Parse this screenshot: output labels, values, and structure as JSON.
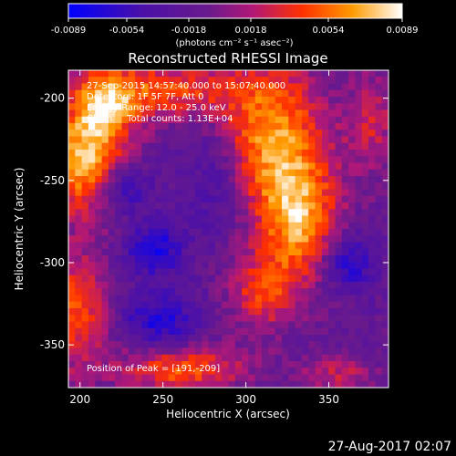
{
  "chart_data": {
    "type": "heatmap",
    "title": "Reconstructed RHESSI Image",
    "colorbar": {
      "ticks": [
        "-0.0089",
        "-0.0054",
        "-0.0018",
        "0.0018",
        "0.0054",
        "0.0089"
      ],
      "range": [
        -0.0089,
        0.0089
      ],
      "units": "(photons cm⁻² s⁻¹ asec⁻²)",
      "colors": [
        "#0000ff",
        "#4a10a8",
        "#6a1a8c",
        "#b01878",
        "#ff3000",
        "#ff9a00",
        "#ffffff"
      ]
    },
    "xlabel": "Heliocentric X (arcsec)",
    "ylabel": "Heliocentric Y (arcsec)",
    "xlim": [
      193,
      386
    ],
    "ylim": [
      -376,
      -183
    ],
    "xticks": [
      200,
      250,
      300,
      350
    ],
    "yticks": [
      -200,
      -250,
      -300,
      -350
    ],
    "grid": false,
    "annotations": [
      "27-Sep-2015 14:57:40.000 to 15:07:40.000",
      "Detectors: 1F 5F 7F, Att 0",
      "Energy Range: 12.0 - 25.0 keV",
      "Clean     Total counts: 1.13E+04"
    ],
    "peak_label": "Position of Peak = [191,-209]",
    "blobs": [
      {
        "x": 202,
        "y": -239,
        "amp": 0.0092,
        "sx": 16,
        "sy": 22
      },
      {
        "x": 215,
        "y": -205,
        "amp": 0.007,
        "sx": 14,
        "sy": 16
      },
      {
        "x": 198,
        "y": -330,
        "amp": 0.006,
        "sx": 14,
        "sy": 26
      },
      {
        "x": 250,
        "y": -195,
        "amp": 0.006,
        "sx": 30,
        "sy": 12
      },
      {
        "x": 315,
        "y": -225,
        "amp": 0.0085,
        "sx": 22,
        "sy": 34
      },
      {
        "x": 333,
        "y": -275,
        "amp": 0.0075,
        "sx": 16,
        "sy": 26
      },
      {
        "x": 310,
        "y": -318,
        "amp": 0.0055,
        "sx": 14,
        "sy": 16
      },
      {
        "x": 375,
        "y": -215,
        "amp": 0.004,
        "sx": 10,
        "sy": 22
      },
      {
        "x": 262,
        "y": -365,
        "amp": 0.0065,
        "sx": 26,
        "sy": 10
      },
      {
        "x": 355,
        "y": -368,
        "amp": 0.0035,
        "sx": 16,
        "sy": 8
      },
      {
        "x": 245,
        "y": -292,
        "amp": -0.0055,
        "sx": 12,
        "sy": 12
      },
      {
        "x": 225,
        "y": -255,
        "amp": -0.005,
        "sx": 12,
        "sy": 10
      },
      {
        "x": 248,
        "y": -335,
        "amp": -0.005,
        "sx": 16,
        "sy": 12
      },
      {
        "x": 362,
        "y": -300,
        "amp": -0.005,
        "sx": 12,
        "sy": 12
      },
      {
        "x": 283,
        "y": -250,
        "amp": -0.0035,
        "sx": 14,
        "sy": 24
      }
    ],
    "baseline": -0.0022
  },
  "footer": {
    "timestamp": "27-Aug-2017 02:07"
  }
}
